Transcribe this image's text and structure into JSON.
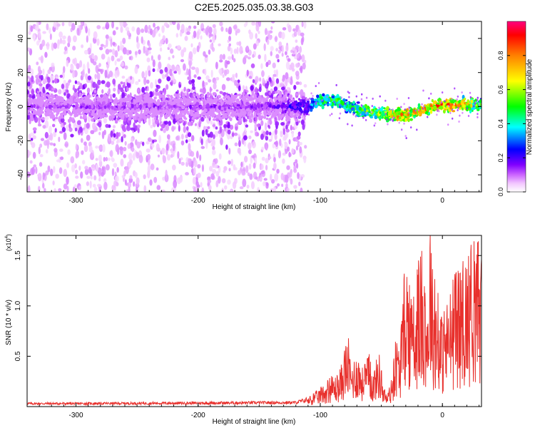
{
  "title": "C2E5.2025.035.03.38.G03",
  "chart_data": [
    {
      "type": "heatmap",
      "title": "",
      "xlabel": "Height of straight line (km)",
      "ylabel": "Frequency (Hz)",
      "xlim": [
        -340,
        32
      ],
      "ylim": [
        -50,
        50
      ],
      "xticks": [
        -300,
        -200,
        -100,
        0
      ],
      "yticks": [
        -40,
        -20,
        0,
        20,
        40
      ],
      "colorbar": {
        "label": "Normalized spectral amplitude",
        "range": [
          0,
          1
        ],
        "ticks": [
          0.0,
          0.2,
          0.4,
          0.6,
          0.8
        ],
        "colormap": [
          "#ffffff",
          "#ff00ff",
          "#8000ff",
          "#0000ff",
          "#00ffff",
          "#00ff00",
          "#ffff00",
          "#ff8000",
          "#ff0000",
          "#ff0080"
        ]
      },
      "ridge": {
        "x": [
          -340,
          -300,
          -250,
          -200,
          -150,
          -112,
          -100,
          -90,
          -80,
          -70,
          -60,
          -50,
          -40,
          -30,
          -20,
          -10,
          0,
          10,
          20,
          32
        ],
        "y": [
          0,
          0,
          0,
          0,
          0,
          0,
          3,
          4,
          1,
          -2,
          -3,
          -4,
          -5,
          -5,
          -3,
          0,
          1,
          1,
          1,
          1
        ],
        "amplitude": [
          0.15,
          0.17,
          0.17,
          0.17,
          0.18,
          0.3,
          0.55,
          0.6,
          0.55,
          0.6,
          0.65,
          0.72,
          0.82,
          0.88,
          0.85,
          0.9,
          0.95,
          0.95,
          0.8,
          0.55
        ]
      },
      "noise_floor_cutoff_x": -112
    },
    {
      "type": "line",
      "title": "",
      "xlabel": "Height of straight line (km)",
      "ylabel": "SNR (10 * v/v)",
      "y_multiplier_label": "(x10",
      "y_multiplier_exp": "4",
      "y_multiplier_close": ")",
      "xlim": [
        -340,
        32
      ],
      "ylim": [
        0,
        17000
      ],
      "xticks": [
        -300,
        -200,
        -100,
        0
      ],
      "yticks": [
        5000,
        10000,
        15000
      ],
      "ytick_labels": [
        "0.5",
        "1.0",
        "1.5"
      ],
      "color": "#e8302c",
      "series": [
        {
          "x": [
            -340,
            -300,
            -200,
            -120,
            -110,
            -100,
            -95,
            -90,
            -85,
            -80,
            -77,
            -75,
            -72,
            -70,
            -65,
            -60,
            -57,
            -55,
            -52,
            -50,
            -48,
            -45,
            -42,
            -40,
            -38,
            -35,
            -32,
            -30,
            -28,
            -25,
            -22,
            -20,
            -18,
            -15,
            -12,
            -10,
            -8,
            -5,
            -2,
            0,
            5,
            10,
            15,
            20,
            25,
            32
          ],
          "y": [
            300,
            300,
            350,
            400,
            700,
            1500,
            2000,
            2500,
            2500,
            4500,
            5500,
            3500,
            4000,
            4500,
            3000,
            4200,
            2500,
            3500,
            4500,
            3000,
            1500,
            1000,
            2000,
            3500,
            6000,
            4500,
            9000,
            13500,
            10500,
            8000,
            9500,
            11500,
            12000,
            13000,
            8500,
            16500,
            11000,
            9500,
            8500,
            7000,
            9000,
            10500,
            11000,
            12500,
            13000,
            14000
          ]
        }
      ]
    }
  ]
}
